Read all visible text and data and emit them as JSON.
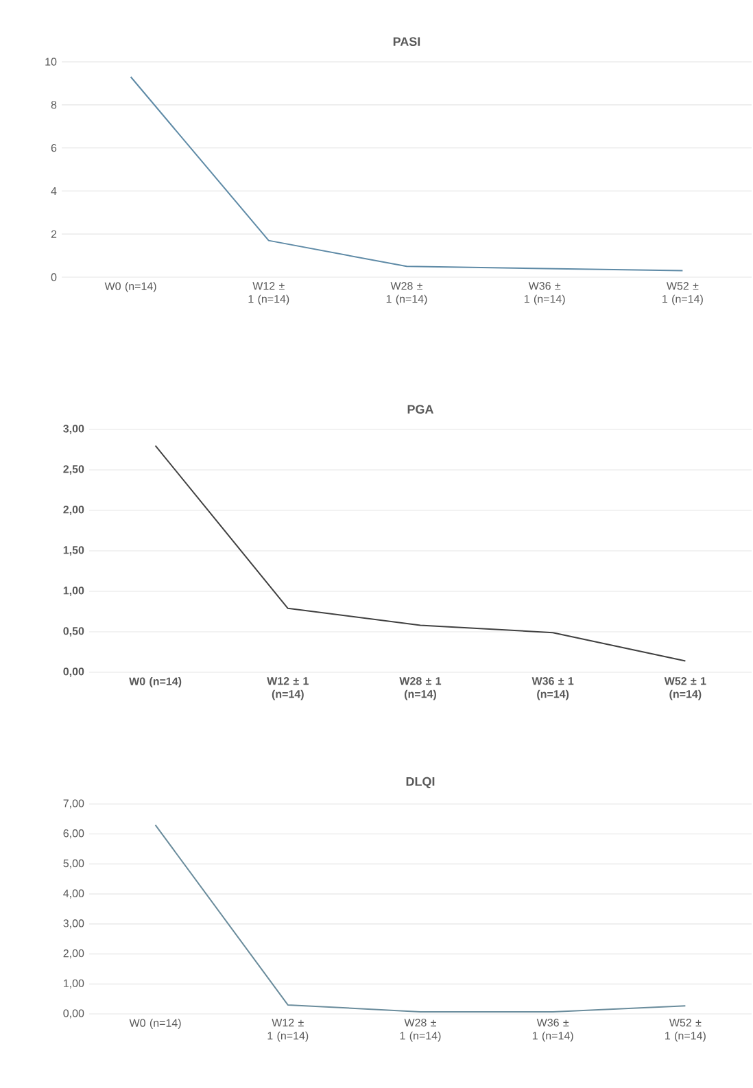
{
  "chart_data": [
    {
      "type": "line",
      "title": "PASI",
      "categories": [
        "W0 (n=14)",
        "W12 ± 1 (n=14)",
        "W28 ± 1 (n=14)",
        "W36 ± 1 (n=14)",
        "W52 ± 1 (n=14)"
      ],
      "series": [
        {
          "color": "#5e8aa6",
          "values": [
            9.3,
            1.7,
            0.5,
            0.4,
            0.3
          ]
        }
      ],
      "ylim": [
        0,
        10
      ],
      "yticks": [
        0,
        2,
        4,
        6,
        8,
        10
      ],
      "grid": "y"
    },
    {
      "type": "line",
      "title": "PGA",
      "categories": [
        "W0 (n=14)",
        "W12 ± 1 (n=14)",
        "W28 ± 1 (n=14)",
        "W36 ± 1 (n=14)",
        "W52 ± 1 (n=14)"
      ],
      "series": [
        {
          "color": "#404040",
          "values": [
            2.8,
            0.79,
            0.58,
            0.49,
            0.14
          ]
        }
      ],
      "ylim": [
        0,
        3
      ],
      "yticks": [
        {
          "value": 0,
          "label": "0,00"
        },
        {
          "value": 0.5,
          "label": "0,50"
        },
        {
          "value": 1,
          "label": "1,00"
        },
        {
          "value": 1.5,
          "label": "1,50"
        },
        {
          "value": 2,
          "label": "2,00"
        },
        {
          "value": 2.5,
          "label": "2,50"
        },
        {
          "value": 3,
          "label": "3,00"
        }
      ],
      "grid": "y"
    },
    {
      "type": "line",
      "title": "DLQI",
      "categories": [
        "W0 (n=14)",
        "W12 ± 1 (n=14)",
        "W28 ± 1 (n=14)",
        "W36 ± 1 (n=14)",
        "W52 ± 1 (n=14)"
      ],
      "series": [
        {
          "color": "#6a8c9c",
          "values": [
            6.3,
            0.3,
            0.07,
            0.07,
            0.27
          ]
        }
      ],
      "ylim": [
        0,
        7
      ],
      "yticks": [
        {
          "value": 0,
          "label": "0,00"
        },
        {
          "value": 1,
          "label": "1,00"
        },
        {
          "value": 2,
          "label": "2,00"
        },
        {
          "value": 3,
          "label": "3,00"
        },
        {
          "value": 4,
          "label": "4,00"
        },
        {
          "value": 5,
          "label": "5,00"
        },
        {
          "value": 6,
          "label": "6,00"
        },
        {
          "value": 7,
          "label": "7,00"
        }
      ],
      "grid": "y"
    }
  ]
}
